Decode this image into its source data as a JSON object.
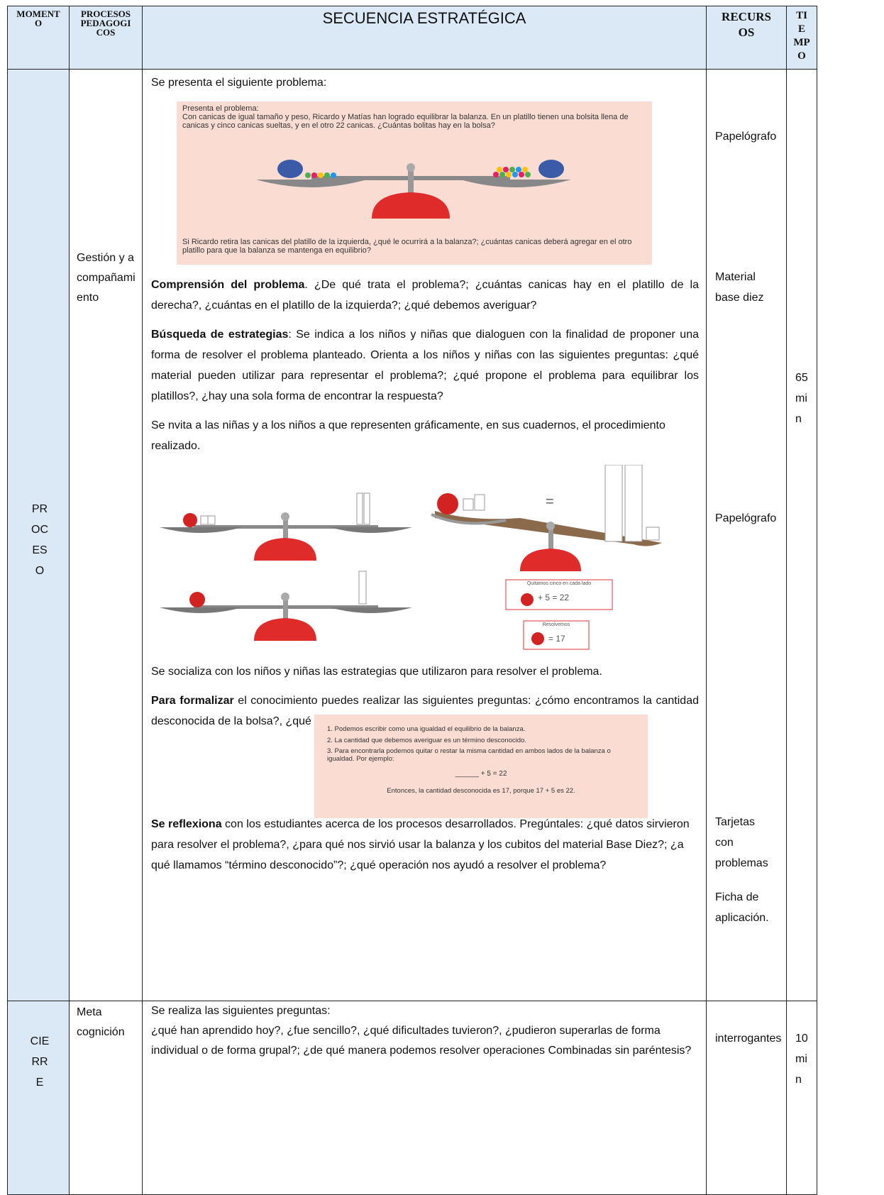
{
  "header": {
    "momento": "MOMENTO",
    "procesos": "PROCESOS PEDAGOGICOS",
    "secuencia": "SECUENCIA ESTRATÉGICA",
    "recursos": "RECURSOS",
    "tiempo": "TIEMPO"
  },
  "rows": [
    {
      "momento": "PROCESO",
      "proceso": "Gestión y acompañamiento",
      "secuencia": {
        "intro": "Se presenta el siguiente problema:",
        "figure1": {
          "heading": "Presenta el problema:",
          "text": "Con canicas de igual tamaño y peso, Ricardo y Matías han logrado equilibrar la balanza. En un platillo tienen una bolsita llena de canicas y cinco canicas sueltas, y en el otro 22 canicas. ¿Cuántas bolitas hay en la bolsa?",
          "question": "Si Ricardo retira las canicas del platillo de la izquierda, ¿qué le ocurrirá a la balanza?; ¿cuántas canicas deberá agregar en el otro platillo para que la balanza se mantenga en equilibrio?"
        },
        "comprension": {
          "bold": "Comprensión del problema",
          "text": ".  ¿De qué trata el problema?; ¿cuántas canicas hay en el platillo de la derecha?, ¿cuántas en el platillo de la izquierda?; ¿qué debemos averiguar?"
        },
        "busqueda": {
          "bold": "Búsqueda de estrategias",
          "text": ": Se indica a los niños y niñas que dialoguen con la finalidad de proponer una forma de resolver el problema planteado. Orienta a los niños y niñas con las siguientes preguntas: ¿qué material pueden utilizar para representar el problema?; ¿qué propone el problema para equilibrar los platillos?, ¿hay una sola forma de encontrar la respuesta?"
        },
        "representa": "Se nvita a las niñas y a los niños a que representen gráficamente, en sus cuadernos, el procedimiento realizado.",
        "figure2": {
          "equals": "=",
          "card1_title": "Quitamos cinco en cada lado",
          "card1_eq": "+ 5 = 22",
          "card2_title": "Resolvemos",
          "card2_eq": "= 17"
        },
        "socializa": "Se socializa con los niños y niñas las estrategias que utilizaron para resolver el problema.",
        "formalizar": {
          "bold": "Para formalizar",
          "text": " el conocimiento puedes realizar las siguientes preguntas: ¿cómo encontramos la cantidad desconocida de la bolsa?, ¿qué operación tuvimos que realizar?, ¿a cuánto teníamos que igualar?"
        },
        "figure3": {
          "items": [
            "1. Podemos escribir como una igualdad el equilibrio de la balanza.",
            "2. La cantidad que debemos averiguar es un término desconocido.",
            "3. Para encontrarla podemos quitar o restar la misma cantidad en ambos lados de la balanza o igualdad. Por ejemplo:"
          ],
          "equation": "______ + 5 = 22",
          "conclusion": "Entonces, la cantidad desconocida es 17, porque 17 + 5 es 22."
        },
        "reflexiona": {
          "bold": "Se reflexiona",
          "text": " con los estudiantes acerca de los procesos desarrollados. Pregúntales: ¿qué datos sirvieron para resolver el problema?, ¿para qué nos sirvió usar la balanza y los cubitos del material Base Diez?; ¿a qué llamamos “término desconocido”?; ¿qué operación nos ayudó a resolver el problema?"
        }
      },
      "recursos": [
        "Papelógrafo",
        "Material base diez",
        "Papelógrafo",
        "Tarjetas con problemas",
        "Ficha de aplicación."
      ],
      "tiempo": "65 min"
    },
    {
      "momento": "CIERRE",
      "proceso": "Meta cognición",
      "secuencia": {
        "intro": "Se realiza las siguientes preguntas:",
        "text": "¿qué han aprendido hoy?, ¿fue sencillo?, ¿qué dificultades tuvieron?, ¿pudieron superarlas de forma individual o de forma grupal?; ¿de qué manera podemos resolver operaciones Combinadas sin paréntesis?"
      },
      "recursos": [
        "interrogantes"
      ],
      "tiempo": "10 min"
    }
  ]
}
